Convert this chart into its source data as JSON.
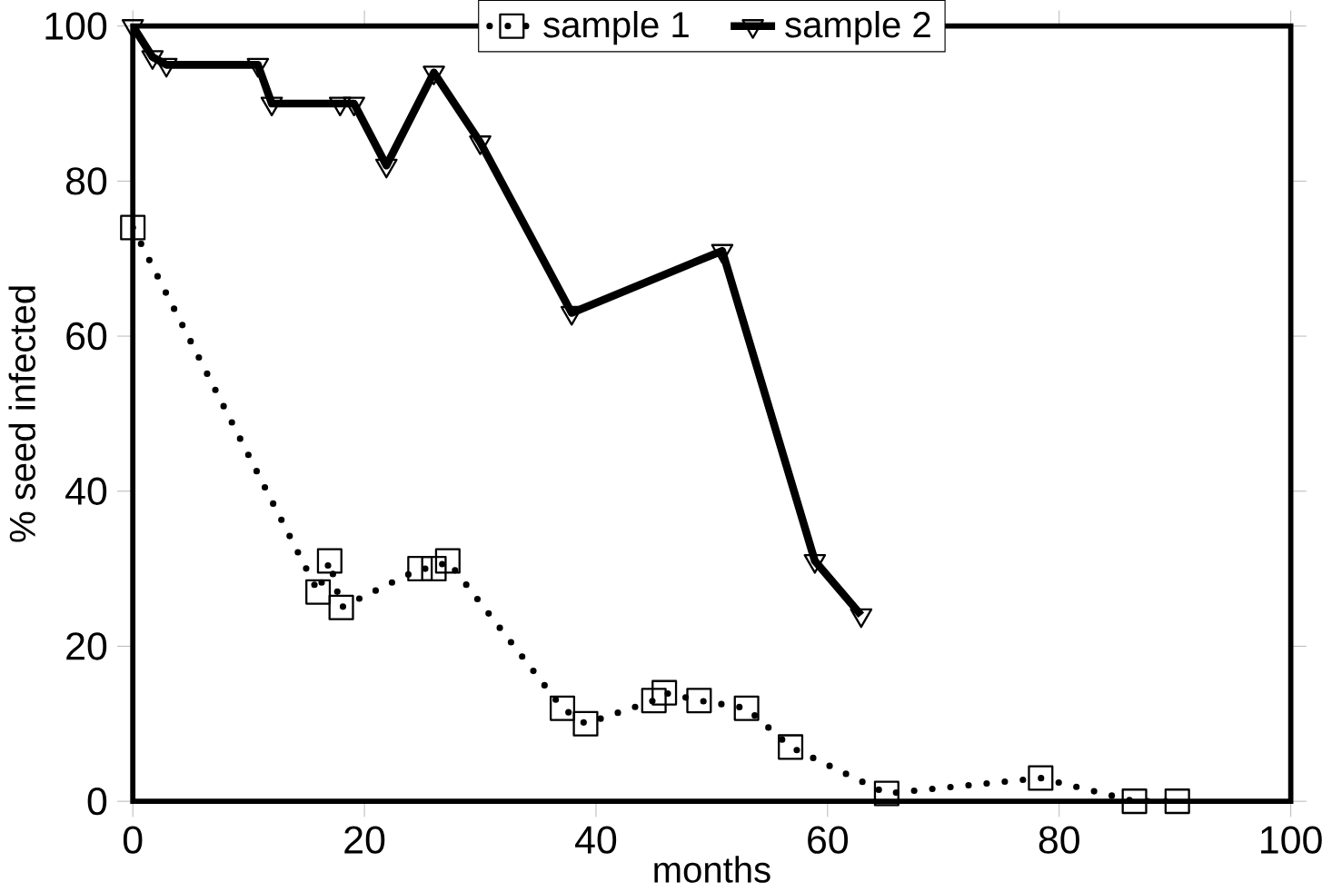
{
  "chart_data": {
    "type": "line",
    "xlabel": "months",
    "ylabel": "% seed infected",
    "xlim": [
      0,
      100
    ],
    "xticks": [
      0,
      20,
      40,
      60,
      80,
      100
    ],
    "ylim": [
      0,
      100
    ],
    "yticks": [
      0,
      20,
      40,
      60,
      80,
      100
    ],
    "legend": "top",
    "grid": false,
    "series": [
      {
        "name": "sample 1",
        "color": "#000000",
        "marker": "square",
        "line_style": "dotted",
        "x": [
          0,
          16,
          17,
          18,
          24.8,
          26,
          27.2,
          37.1,
          39.1,
          45,
          45.9,
          48.9,
          53,
          56.8,
          65.1,
          78.4,
          86.5,
          90.2
        ],
        "values": [
          74,
          27,
          31,
          25,
          30,
          30,
          31,
          12,
          10,
          13,
          14,
          13,
          12,
          7,
          1,
          3,
          0,
          0
        ]
      },
      {
        "name": "sample 2",
        "color": "#000000",
        "marker": "triangle",
        "line_style": "solid",
        "x": [
          0,
          1.7,
          2.9,
          10.8,
          12,
          17.9,
          19.1,
          21.9,
          26,
          30,
          37.9,
          50.9,
          58.9,
          62.9
        ],
        "values": [
          100,
          96,
          95,
          95,
          90,
          90,
          90,
          82,
          94,
          85,
          63,
          71,
          31,
          24
        ]
      }
    ]
  }
}
